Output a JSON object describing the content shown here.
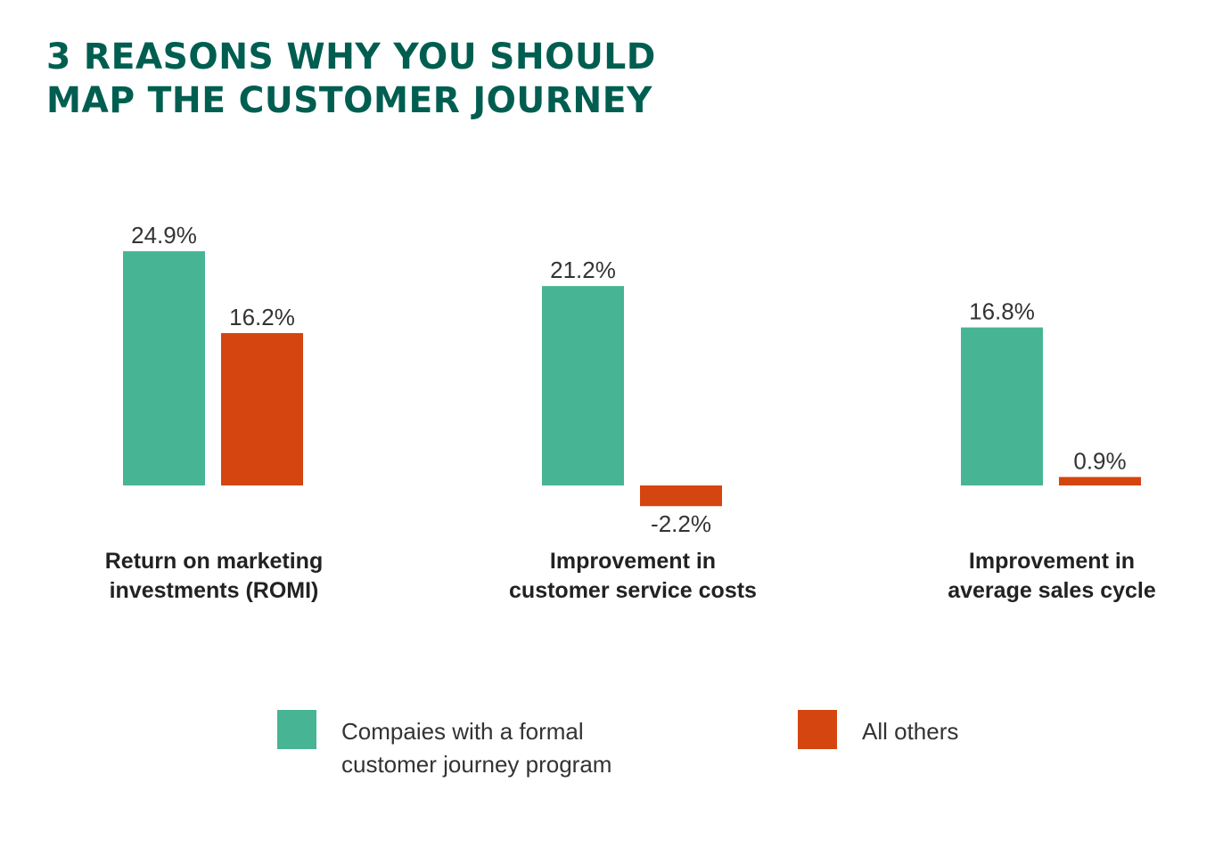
{
  "chart_data": {
    "type": "bar",
    "title": [
      "3 REASONS WHY YOU SHOULD",
      "MAP THE CUSTOMER JOURNEY"
    ],
    "categories": [
      [
        "Return on marketing",
        "investments (ROMI)"
      ],
      [
        "Improvement in",
        "customer service costs"
      ],
      [
        "Improvement in",
        "average sales cycle"
      ]
    ],
    "series": [
      {
        "name": "Compaies with a formal customer journey program",
        "name_lines": [
          "Compaies with a formal",
          "customer journey program"
        ],
        "color": "#47b594",
        "values": [
          24.9,
          21.2,
          16.8
        ],
        "labels": [
          "24.9%",
          "21.2%",
          "16.8%"
        ]
      },
      {
        "name": "All others",
        "name_lines": [
          "All others"
        ],
        "color": "#d4450f",
        "values": [
          16.2,
          -2.2,
          0.9
        ],
        "labels": [
          "16.2%",
          "-2.2%",
          "0.9%"
        ]
      }
    ],
    "unit": "%",
    "grid": false,
    "axes_visible": false,
    "legend_position": "bottom",
    "title_color": "#005e50"
  }
}
